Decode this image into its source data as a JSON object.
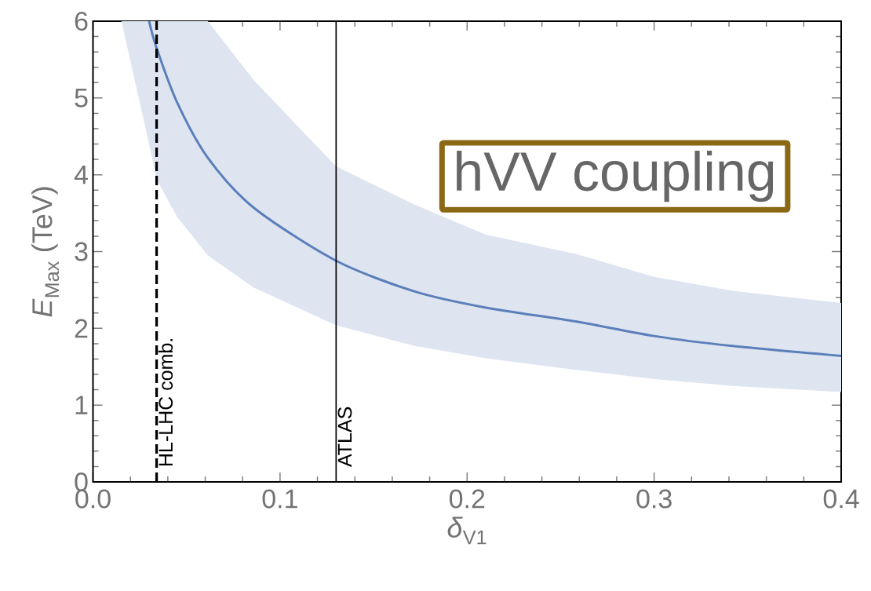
{
  "chart_data": {
    "type": "line",
    "xlabel": "*δ*$_{V1}$",
    "ylabel": "*E*$_{Max}$ (TeV)",
    "x": [
      0.0152,
      0.03,
      0.034,
      0.045,
      0.0614,
      0.086,
      0.13,
      0.172,
      0.21,
      0.258,
      0.3,
      0.342,
      0.4
    ],
    "series": [
      {
        "color": "#5b7fba",
        "values": [
          null,
          6.0,
          5.65,
          4.94,
          4.22,
          3.57,
          2.88,
          2.48,
          2.27,
          2.09,
          1.9,
          1.77,
          1.64
        ],
        "lower": [
          6.0,
          4.4,
          3.94,
          3.45,
          2.95,
          2.53,
          2.04,
          1.77,
          1.61,
          1.46,
          1.34,
          1.25,
          1.17
        ],
        "upper": [
          6.0,
          6.0,
          6.0,
          6.0,
          6.0,
          5.23,
          4.11,
          3.61,
          3.22,
          2.97,
          2.67,
          2.49,
          2.33
        ]
      }
    ],
    "xlim": [
      0,
      0.4
    ],
    "ylim": [
      0,
      6
    ],
    "xticks": [
      {
        "value": 0,
        "label": "0.0"
      },
      0.1,
      0.2,
      0.3,
      0.4
    ],
    "yticks": [
      0,
      1,
      2,
      3,
      4,
      5,
      6
    ],
    "ref_lines": [
      {
        "axis": "x",
        "value": 0.034,
        "label": "HL-LHC comb.",
        "color": "#000000",
        "line_style": "dashed"
      },
      {
        "axis": "x",
        "value": 0.13,
        "label": "ATLAS",
        "color": "#000000",
        "line_style": "solid"
      }
    ],
    "annotations": [
      "hVV coupling"
    ],
    "grid": false,
    "marker": "none",
    "line_style": "solid"
  }
}
